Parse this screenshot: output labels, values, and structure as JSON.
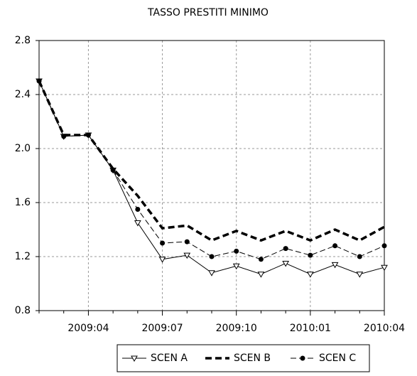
{
  "chart_data": {
    "type": "line",
    "title": "TASSO PRESTITI MINIMO",
    "categories": [
      null,
      null,
      "2009:04",
      null,
      null,
      "2009:07",
      null,
      null,
      "2009:10",
      null,
      null,
      "2010:01",
      null,
      null,
      "2010:04"
    ],
    "series": [
      {
        "name": "SCEN A",
        "color": "#000000",
        "dash": "solid",
        "marker": "triangle-open",
        "values": [
          2.5,
          2.09,
          2.1,
          1.84,
          1.45,
          1.18,
          1.21,
          1.08,
          1.13,
          1.07,
          1.15,
          1.07,
          1.14,
          1.07,
          1.12
        ]
      },
      {
        "name": "SCEN B",
        "color": "#000000",
        "dash": "dashed-thick",
        "marker": "none",
        "values": [
          2.5,
          2.1,
          2.1,
          1.85,
          1.65,
          1.41,
          1.43,
          1.32,
          1.39,
          1.32,
          1.39,
          1.32,
          1.4,
          1.32,
          1.42
        ]
      },
      {
        "name": "SCEN C",
        "color": "#000000",
        "dash": "dash-dot",
        "marker": "circle-filled",
        "values": [
          2.5,
          2.09,
          2.1,
          1.84,
          1.55,
          1.3,
          1.31,
          1.2,
          1.24,
          1.18,
          1.26,
          1.21,
          1.28,
          1.2,
          1.28
        ]
      }
    ],
    "ylim": [
      0.8,
      2.8
    ],
    "yticks": [
      {
        "value": 0.8,
        "label": "0.8"
      },
      {
        "value": 1.2,
        "label": "1.2"
      },
      {
        "value": 1.6,
        "label": "1.6"
      },
      {
        "value": 2.0,
        "label": "2.0"
      },
      {
        "value": 2.4,
        "label": "2.4"
      },
      {
        "value": 2.8,
        "label": "2.8"
      }
    ],
    "grid": true,
    "legend": "bottom"
  }
}
